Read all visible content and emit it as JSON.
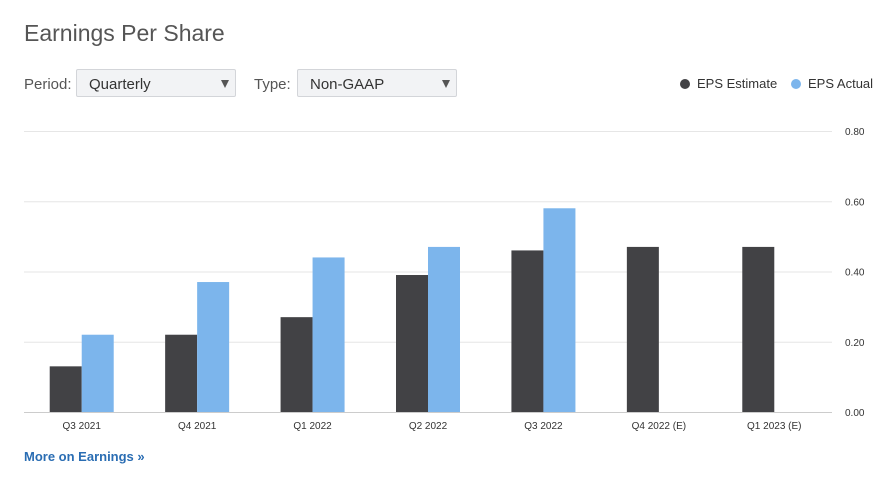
{
  "header": {
    "title": "Earnings Per Share"
  },
  "controls": {
    "period_label": "Period:",
    "period_value": "Quarterly",
    "type_label": "Type:",
    "type_value": "Non-GAAP"
  },
  "legend": {
    "estimate_label": "EPS Estimate",
    "actual_label": "EPS Actual"
  },
  "colors": {
    "estimate": "#424245",
    "actual": "#7cb5ec",
    "grid": "#e6e6e6"
  },
  "chart_data": {
    "type": "bar",
    "title": "Earnings Per Share",
    "xlabel": "",
    "ylabel": "",
    "categories": [
      "Q3 2021",
      "Q4 2021",
      "Q1 2022",
      "Q2 2022",
      "Q3 2022",
      "Q4 2022 (E)",
      "Q1 2023 (E)"
    ],
    "series": [
      {
        "name": "EPS Estimate",
        "values": [
          0.13,
          0.22,
          0.27,
          0.39,
          0.46,
          0.47,
          0.47
        ]
      },
      {
        "name": "EPS Actual",
        "values": [
          0.22,
          0.37,
          0.44,
          0.47,
          0.58,
          null,
          null
        ]
      }
    ],
    "ylim": [
      0,
      0.8
    ],
    "yticks": [
      "0.00",
      "0.20",
      "0.40",
      "0.60",
      "0.80"
    ],
    "y_axis_position": "right",
    "grid": true,
    "legend_position": "top-right"
  },
  "footer": {
    "more_link": "More on Earnings »"
  }
}
